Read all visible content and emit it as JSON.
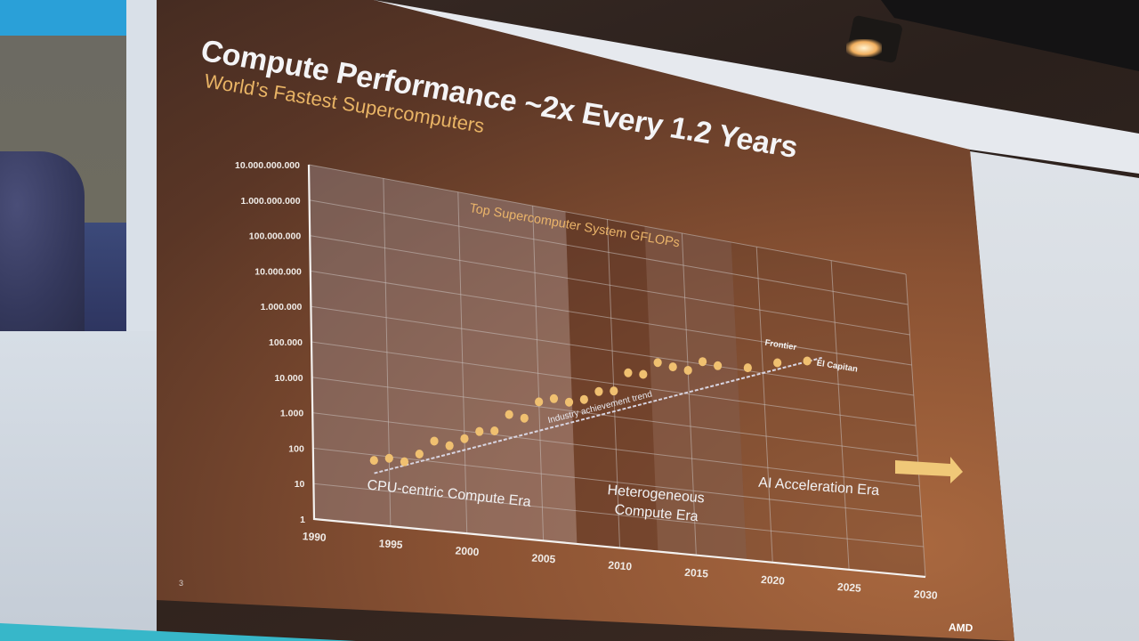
{
  "slide": {
    "title": "Compute Performance ~2x Every 1.2 Years",
    "subtitle": "World’s Fastest Supercomputers",
    "page_number": "3",
    "logo": "AMD"
  },
  "colors": {
    "title": "#f4f4f6",
    "subtitle": "#e9b465",
    "data_point": "#f0c070",
    "trend_line": "#d8d4e0",
    "grid": "#c9bfbb",
    "arrow": "#f0c878"
  },
  "chart_data": {
    "type": "scatter",
    "title": "Top Supercomputer System GFLOPs",
    "xlabel": "",
    "ylabel": "",
    "xlim": [
      1990,
      2030
    ],
    "ylim": [
      1,
      10000000000
    ],
    "yscale": "log",
    "grid": true,
    "x_ticks": [
      "1990",
      "1995",
      "2000",
      "2005",
      "2010",
      "2015",
      "2020",
      "2025",
      "2030"
    ],
    "y_ticks": [
      "1",
      "10",
      "100",
      "1.000",
      "10.000",
      "100.000",
      "1.000.000",
      "10.000.000",
      "100.000.000",
      "1.000.000.000",
      "10.000.000.000"
    ],
    "series": [
      {
        "name": "Top Supercomputer System GFLOPs",
        "x": [
          1994,
          1995,
          1996,
          1997,
          1998,
          1999,
          2000,
          2001,
          2002,
          2003,
          2004,
          2005,
          2006,
          2007,
          2008,
          2009,
          2010,
          2011,
          2012,
          2013,
          2014,
          2015,
          2016,
          2017,
          2019,
          2021,
          2023
        ],
        "y": [
          70,
          90,
          80,
          150,
          400,
          330,
          600,
          1100,
          1300,
          4500,
          4000,
          14000,
          20000,
          18000,
          25000,
          50000,
          60000,
          250000,
          260000,
          700000,
          600000,
          550000,
          1200000,
          1050000,
          1250000,
          2500000,
          4000000
        ]
      }
    ],
    "annotations": [
      {
        "text": "Frontier",
        "x": 2021,
        "y": 2500000
      },
      {
        "text": "El Capitan",
        "x": 2023,
        "y": 4000000
      },
      {
        "text": "Industry achievement trend",
        "type": "dashed-line",
        "from": [
          1994,
          30
        ],
        "to": [
          2024,
          6000000
        ]
      },
      {
        "text": "CPU-centric Compute Era",
        "region": [
          1990,
          2007
        ]
      },
      {
        "text": "Heterogeneous Compute Era",
        "region": [
          2007,
          2018
        ]
      },
      {
        "text": "AI Acceleration Era",
        "region": [
          2018,
          2030
        ],
        "arrow": "right"
      }
    ],
    "era_bands": [
      {
        "name": "CPU-centric Compute Era",
        "from": 1990,
        "to": 2007,
        "shade": "light"
      },
      {
        "name": "Heterogeneous Compute Era",
        "from": 2007,
        "to": 2018,
        "shade": "dark-then-light"
      },
      {
        "name": "AI Acceleration Era",
        "from": 2018,
        "to": 2030,
        "shade": "none"
      }
    ],
    "legend": "none"
  },
  "labels": {
    "chart_title": "Top Supercomputer System GFLOPs",
    "trend": "Industry achievement trend",
    "era_cpu": "CPU-centric Compute Era",
    "era_hetero_1": "Heterogeneous",
    "era_hetero_2": "Compute Era",
    "era_ai": "AI Acceleration Era",
    "frontier": "Frontier",
    "el_capitan": "El Capitan"
  }
}
